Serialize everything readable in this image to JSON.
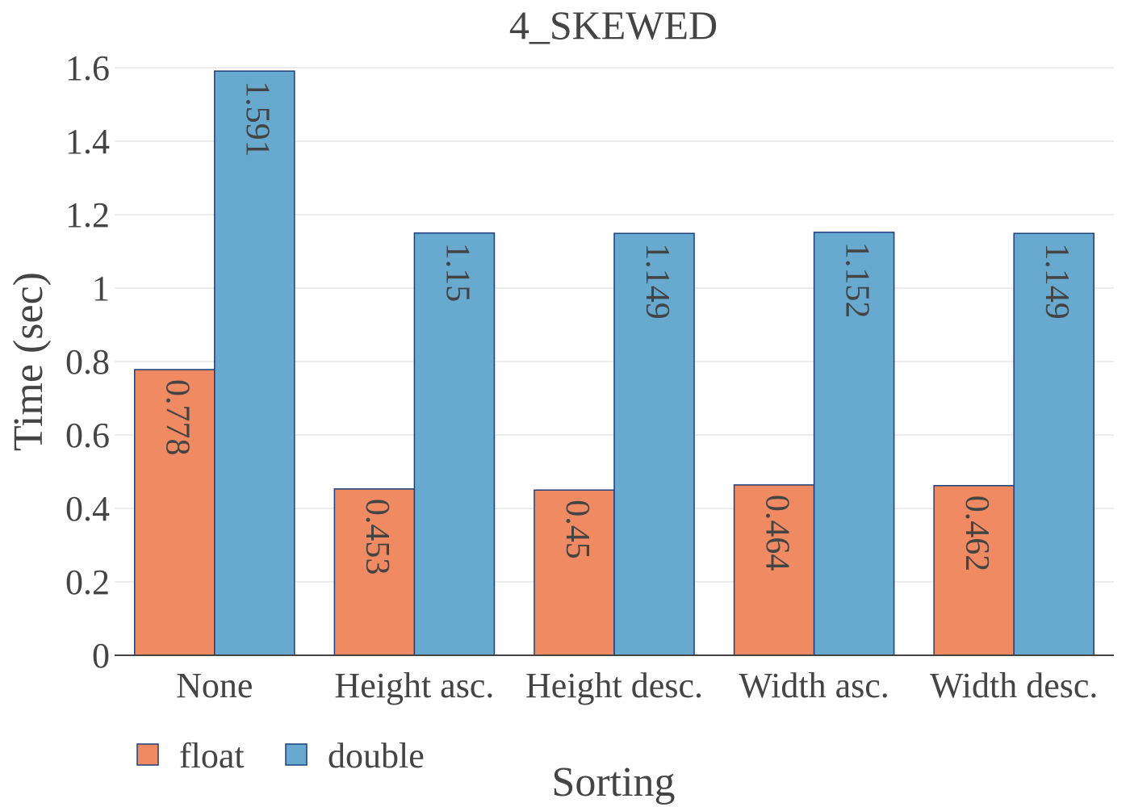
{
  "chart_data": {
    "type": "bar",
    "title": "4_SKEWED",
    "xlabel": "Sorting",
    "ylabel": "Time (sec)",
    "categories": [
      "None",
      "Height asc.",
      "Height desc.",
      "Width asc.",
      "Width desc."
    ],
    "series": [
      {
        "name": "float",
        "color": "#ef8a62",
        "values": [
          0.778,
          0.453,
          0.45,
          0.464,
          0.462
        ],
        "labels": [
          "0.778",
          "0.453",
          "0.45",
          "0.464",
          "0.462"
        ]
      },
      {
        "name": "double",
        "color": "#67a9cf",
        "values": [
          1.591,
          1.15,
          1.149,
          1.152,
          1.149
        ],
        "labels": [
          "1.591",
          "1.15",
          "1.149",
          "1.152",
          "1.149"
        ]
      }
    ],
    "ylim": [
      0,
      1.6
    ],
    "yticks": [
      0,
      0.2,
      0.4,
      0.6,
      0.8,
      1,
      1.2,
      1.4,
      1.6
    ],
    "ytick_labels": [
      "0",
      "0.2",
      "0.4",
      "0.6",
      "0.8",
      "1",
      "1.2",
      "1.4",
      "1.6"
    ],
    "grid": true,
    "legend_position": "bottom-left",
    "bar_edge_color": "#1f3f7a"
  }
}
